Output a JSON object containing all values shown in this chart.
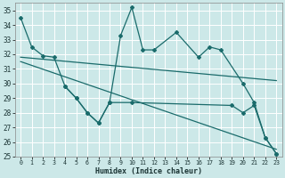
{
  "xlabel": "Humidex (Indice chaleur)",
  "background_color": "#cce8e8",
  "grid_color": "#ffffff",
  "line_color": "#1a6b6b",
  "xlim": [
    -0.5,
    23.5
  ],
  "ylim": [
    25,
    35.5
  ],
  "yticks": [
    25,
    26,
    27,
    28,
    29,
    30,
    31,
    32,
    33,
    34,
    35
  ],
  "xticks": [
    0,
    1,
    2,
    3,
    4,
    5,
    6,
    7,
    8,
    9,
    10,
    11,
    12,
    13,
    14,
    15,
    16,
    17,
    18,
    19,
    20,
    21,
    22,
    23
  ],
  "curve1_x": [
    0,
    1,
    2,
    3,
    4,
    5,
    6,
    7,
    8,
    9,
    10,
    11,
    12,
    14,
    16,
    17,
    18,
    20,
    21,
    22,
    23
  ],
  "curve1_y": [
    34.5,
    32.5,
    31.9,
    31.8,
    29.8,
    29.0,
    28.0,
    27.3,
    28.7,
    33.3,
    35.2,
    32.3,
    32.3,
    33.5,
    31.8,
    32.5,
    32.3,
    30.0,
    28.7,
    26.3,
    25.2
  ],
  "curve2_x": [
    4,
    5,
    6,
    7,
    8,
    10,
    19,
    20,
    21,
    22,
    23
  ],
  "curve2_y": [
    29.8,
    29.0,
    28.0,
    27.3,
    28.7,
    28.7,
    28.5,
    28.0,
    28.5,
    26.3,
    25.2
  ],
  "line1_x": [
    0,
    23
  ],
  "line1_y": [
    31.8,
    30.2
  ],
  "line2_x": [
    0,
    23
  ],
  "line2_y": [
    31.5,
    25.5
  ]
}
